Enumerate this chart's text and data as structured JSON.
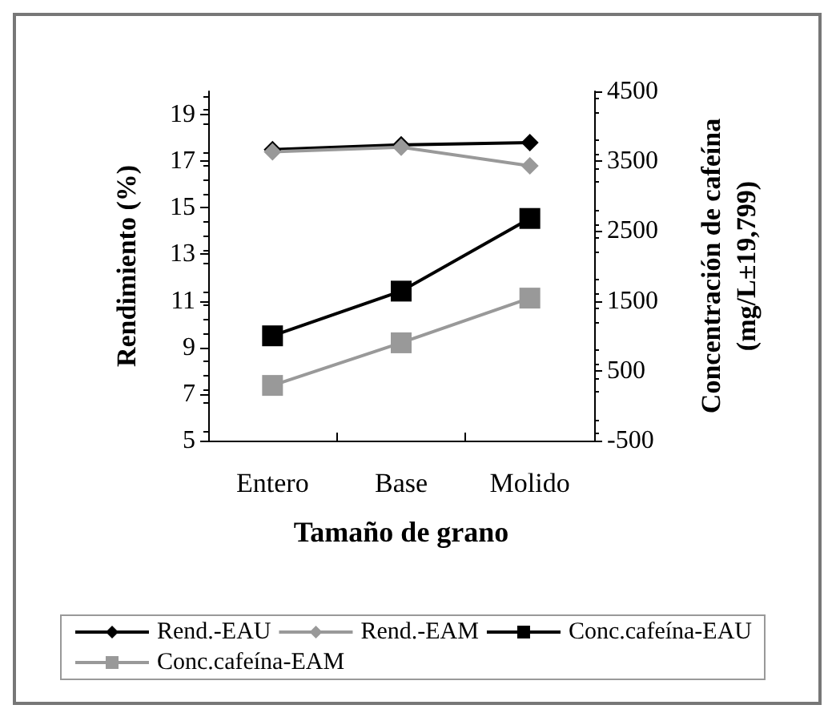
{
  "chart_data": {
    "type": "line",
    "xlabel": "Tamaño de grano",
    "ylabel": "Rendimiento (%)",
    "y2label": "Concentración de cafeína\n(mg/L±19,799)",
    "categories": [
      "Entero",
      "Base",
      "Molido"
    ],
    "series": [
      {
        "name": "Rend.-EAU",
        "color": "#000000",
        "marker": "diamond",
        "values": [
          17.5,
          17.7,
          17.8
        ]
      },
      {
        "name": "Rend.-EAM",
        "color": "#999999",
        "marker": "diamond",
        "values": [
          17.4,
          17.6,
          16.8
        ]
      },
      {
        "name": "Conc.cafeína-EAU",
        "color": "#000000",
        "marker": "square",
        "axis": "y2",
        "values": [
          1000,
          1640,
          2680
        ]
      },
      {
        "name": "Conc.cafeína-EAM",
        "color": "#999999",
        "marker": "square",
        "axis": "y2",
        "values": [
          290,
          900,
          1540
        ]
      }
    ],
    "ylim": [
      5,
      20
    ],
    "yticks": [
      5,
      7,
      9,
      11,
      13,
      15,
      17,
      19
    ],
    "y2lim": [
      -500,
      4500
    ],
    "y2ticks": [
      -500,
      500,
      1500,
      2500,
      3500,
      4500
    ],
    "grid": false,
    "legend": "bottom",
    "line_style": "solid"
  }
}
